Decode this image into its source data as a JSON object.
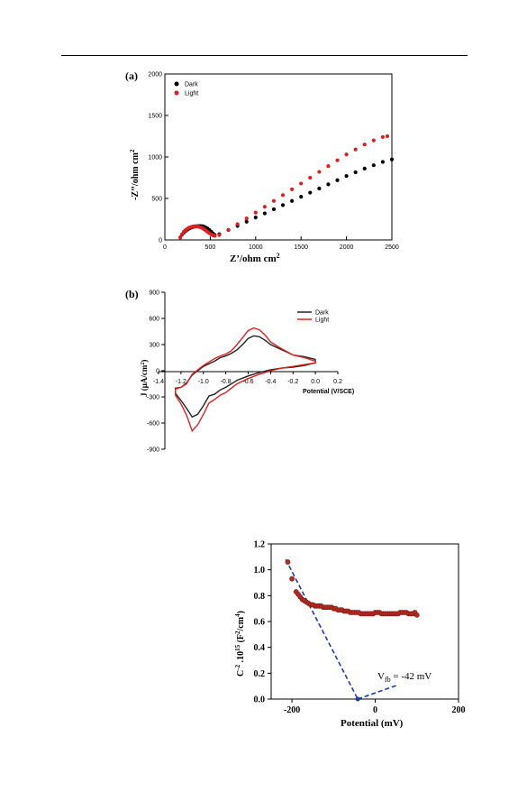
{
  "chart_data": [
    {
      "type": "scatter",
      "panel_label": "(a)",
      "xlabel": "Z’/ohm cm",
      "xlabel_sup": "2",
      "ylabel": "-Z’’/ohm cm",
      "ylabel_sup": "2",
      "xlim": [
        0,
        2500
      ],
      "ylim": [
        0,
        2000
      ],
      "xticks": [
        0,
        500,
        1000,
        1500,
        2000,
        2500
      ],
      "yticks": [
        0,
        500,
        1000,
        1500,
        2000
      ],
      "legend_position": "top-left",
      "grid": false,
      "series": [
        {
          "name": "Dark",
          "color": "#000000",
          "x": [
            170,
            190,
            210,
            230,
            250,
            270,
            290,
            310,
            330,
            350,
            370,
            390,
            410,
            430,
            450,
            470,
            490,
            510,
            530,
            550,
            600,
            700,
            800,
            900,
            1000,
            1100,
            1200,
            1300,
            1400,
            1500,
            1600,
            1700,
            1800,
            1900,
            2000,
            2100,
            2200,
            2300,
            2400,
            2500
          ],
          "y": [
            30,
            65,
            90,
            110,
            125,
            138,
            148,
            156,
            162,
            166,
            168,
            168,
            166,
            160,
            150,
            138,
            120,
            100,
            78,
            60,
            70,
            120,
            170,
            220,
            270,
            320,
            370,
            420,
            470,
            520,
            570,
            620,
            670,
            720,
            770,
            815,
            860,
            900,
            940,
            970
          ]
        },
        {
          "name": "Light",
          "color": "#dd1f1f",
          "x": [
            170,
            190,
            210,
            230,
            250,
            270,
            290,
            310,
            330,
            350,
            370,
            390,
            410,
            430,
            450,
            470,
            490,
            510,
            530,
            550,
            600,
            700,
            800,
            900,
            1000,
            1100,
            1200,
            1300,
            1400,
            1500,
            1600,
            1700,
            1800,
            1900,
            2000,
            2100,
            2200,
            2300,
            2400,
            2450
          ],
          "y": [
            30,
            70,
            100,
            120,
            136,
            148,
            156,
            162,
            164,
            164,
            160,
            154,
            144,
            130,
            115,
            98,
            82,
            68,
            56,
            50,
            60,
            120,
            190,
            260,
            330,
            400,
            470,
            540,
            610,
            680,
            750,
            820,
            890,
            960,
            1030,
            1090,
            1150,
            1200,
            1240,
            1250
          ]
        }
      ]
    },
    {
      "type": "line",
      "panel_label": "(b)",
      "xlabel": "Potential (V/SCE)",
      "ylabel": "J (μA/cm",
      "ylabel_sup": "2",
      "ylabel_end": ")",
      "xlim": [
        -1.4,
        0.2
      ],
      "ylim": [
        -900,
        900
      ],
      "xticks": [
        -1.4,
        -1.2,
        -1.0,
        -0.8,
        -0.6,
        -0.4,
        -0.2,
        0.0,
        0.2
      ],
      "xtick_labels": [
        "-1.4",
        "-1.2",
        "-1.0",
        "-0.8",
        "-0.6",
        "-0.4",
        "-0.2",
        "0.0",
        "0.2"
      ],
      "yticks": [
        -900,
        -600,
        -300,
        0,
        300,
        600,
        900
      ],
      "legend_position": "top-right",
      "grid": false,
      "series": [
        {
          "name": "Dark",
          "color": "#222222",
          "x": [
            0.0,
            -0.1,
            -0.2,
            -0.3,
            -0.4,
            -0.45,
            -0.5,
            -0.55,
            -0.6,
            -0.65,
            -0.7,
            -0.75,
            -0.8,
            -0.85,
            -0.9,
            -0.95,
            -1.0,
            -1.05,
            -1.1,
            -1.15,
            -1.2,
            -1.25,
            -1.25,
            -1.2,
            -1.15,
            -1.1,
            -1.05,
            -1.0,
            -0.95,
            -0.9,
            -0.85,
            -0.8,
            -0.7,
            -0.6,
            -0.5,
            -0.4,
            -0.3,
            -0.2,
            -0.1,
            0.0,
            0.0
          ],
          "y": [
            130,
            160,
            180,
            240,
            300,
            350,
            390,
            400,
            370,
            300,
            240,
            200,
            170,
            150,
            110,
            80,
            50,
            0,
            -50,
            -140,
            -190,
            -200,
            -260,
            -340,
            -430,
            -530,
            -500,
            -400,
            -290,
            -270,
            -220,
            -190,
            -110,
            -60,
            -20,
            10,
            30,
            40,
            60,
            90,
            130
          ]
        },
        {
          "name": "Light",
          "color": "#e02020",
          "x": [
            0.0,
            -0.1,
            -0.2,
            -0.3,
            -0.4,
            -0.45,
            -0.5,
            -0.55,
            -0.6,
            -0.65,
            -0.7,
            -0.75,
            -0.8,
            -0.85,
            -0.9,
            -0.95,
            -1.0,
            -1.05,
            -1.1,
            -1.15,
            -1.2,
            -1.25,
            -1.25,
            -1.2,
            -1.15,
            -1.1,
            -1.05,
            -1.0,
            -0.95,
            -0.9,
            -0.85,
            -0.8,
            -0.7,
            -0.6,
            -0.5,
            -0.4,
            -0.3,
            -0.2,
            -0.1,
            0.0,
            0.0
          ],
          "y": [
            110,
            150,
            180,
            250,
            330,
            410,
            470,
            490,
            460,
            380,
            300,
            230,
            190,
            170,
            140,
            100,
            60,
            10,
            -40,
            -150,
            -190,
            -210,
            -280,
            -380,
            -510,
            -690,
            -620,
            -500,
            -370,
            -330,
            -280,
            -250,
            -150,
            -90,
            -40,
            0,
            30,
            50,
            70,
            90,
            110
          ]
        }
      ]
    },
    {
      "type": "scatter",
      "xlabel": "Potential (mV)",
      "ylabel_parts": [
        "C",
        "-2",
        " .10",
        "15",
        " (F",
        "2",
        "/cm",
        "4",
        ")"
      ],
      "xlim": [
        -250,
        200
      ],
      "ylim": [
        0.0,
        1.2
      ],
      "xticks": [
        -200,
        0,
        200
      ],
      "yticks": [
        0.0,
        0.2,
        0.4,
        0.6,
        0.8,
        1.0,
        1.2
      ],
      "ytick_labels": [
        "0.0",
        "0.2",
        "0.4",
        "0.6",
        "0.8",
        "1.0",
        "1.2"
      ],
      "grid": false,
      "annotation": {
        "text": "V",
        "sub": "fb",
        "rest": " = -42 mV",
        "x": -30,
        "y": 0.16
      },
      "marker_color": "#b52b22",
      "fit_color": "#1a3ab5",
      "points": {
        "x": [
          -210,
          -200,
          -190,
          -185,
          -180,
          -175,
          -170,
          -165,
          -160,
          -155,
          -150,
          -145,
          -140,
          -135,
          -130,
          -125,
          -120,
          -115,
          -110,
          -105,
          -100,
          -95,
          -90,
          -85,
          -80,
          -75,
          -70,
          -65,
          -60,
          -55,
          -50,
          -45,
          -40,
          -35,
          -30,
          -25,
          -20,
          -15,
          -10,
          -5,
          0,
          5,
          10,
          15,
          20,
          25,
          30,
          35,
          40,
          45,
          50,
          55,
          60,
          65,
          70,
          75,
          80,
          85,
          90,
          95,
          100
        ],
        "y": [
          1.06,
          0.93,
          0.83,
          0.81,
          0.79,
          0.77,
          0.76,
          0.75,
          0.74,
          0.73,
          0.73,
          0.72,
          0.72,
          0.72,
          0.72,
          0.71,
          0.71,
          0.71,
          0.71,
          0.71,
          0.7,
          0.7,
          0.69,
          0.69,
          0.69,
          0.68,
          0.68,
          0.68,
          0.67,
          0.67,
          0.67,
          0.67,
          0.67,
          0.66,
          0.66,
          0.66,
          0.66,
          0.66,
          0.66,
          0.66,
          0.67,
          0.67,
          0.67,
          0.66,
          0.66,
          0.66,
          0.66,
          0.66,
          0.66,
          0.66,
          0.66,
          0.66,
          0.67,
          0.67,
          0.67,
          0.67,
          0.66,
          0.66,
          0.66,
          0.67,
          0.65
        ]
      },
      "fit_lines": [
        {
          "x": [
            -215,
            -42
          ],
          "y": [
            1.08,
            0.0
          ]
        },
        {
          "x": [
            -42,
            55
          ],
          "y": [
            0.0,
            0.11
          ]
        }
      ]
    }
  ]
}
